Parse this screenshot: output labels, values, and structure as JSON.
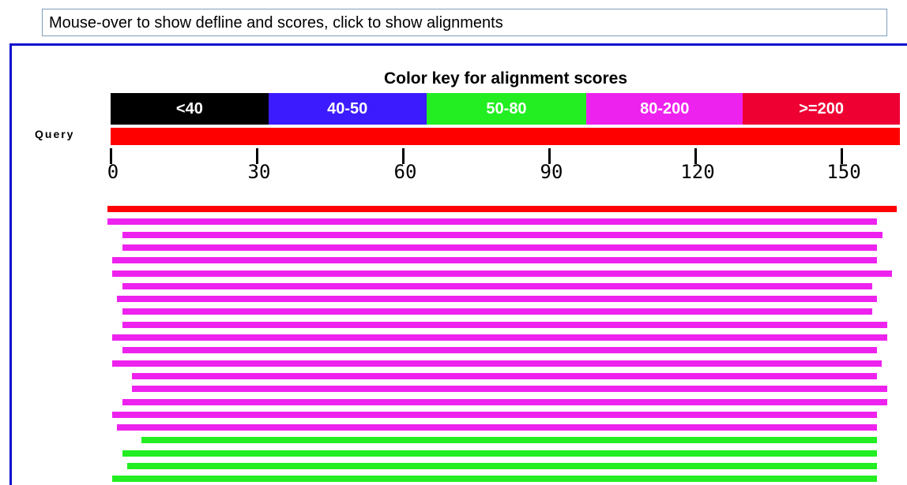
{
  "instruction": "Mouse-over to show defline and scores, click to show alignments",
  "color_key": {
    "title": "Color key for alignment scores",
    "ranges": [
      {
        "label": "<40",
        "color": "#000000",
        "fraction": 0.2
      },
      {
        "label": "40-50",
        "color": "#3c1cff",
        "fraction": 0.2
      },
      {
        "label": "50-80",
        "color": "#22ee22",
        "fraction": 0.203
      },
      {
        "label": "80-200",
        "color": "#ee22ee",
        "fraction": 0.198
      },
      {
        "label": ">=200",
        "color": "#ee0033",
        "fraction": 0.199
      }
    ]
  },
  "query": {
    "label": "Query",
    "color": "#ff0000",
    "length": 162
  },
  "ruler": {
    "ticks": [
      0,
      30,
      60,
      90,
      120,
      150
    ]
  },
  "hits": [
    {
      "start": 0,
      "end": 162,
      "color": "#ff0000"
    },
    {
      "start": 0,
      "end": 158,
      "color": "#ee22ee"
    },
    {
      "start": 3,
      "end": 159,
      "color": "#ee22ee"
    },
    {
      "start": 3,
      "end": 158,
      "color": "#ee22ee"
    },
    {
      "start": 1,
      "end": 158,
      "color": "#ee22ee"
    },
    {
      "start": 1,
      "end": 161,
      "color": "#ee22ee"
    },
    {
      "start": 3,
      "end": 157,
      "color": "#ee22ee"
    },
    {
      "start": 2,
      "end": 158,
      "color": "#ee22ee"
    },
    {
      "start": 3,
      "end": 157,
      "color": "#ee22ee"
    },
    {
      "start": 3,
      "end": 160,
      "color": "#ee22ee"
    },
    {
      "start": 1,
      "end": 160,
      "color": "#ee22ee"
    },
    {
      "start": 3,
      "end": 158,
      "color": "#ee22ee"
    },
    {
      "start": 1,
      "end": 159,
      "color": "#ee22ee"
    },
    {
      "start": 5,
      "end": 158,
      "color": "#ee22ee"
    },
    {
      "start": 5,
      "end": 160,
      "color": "#ee22ee"
    },
    {
      "start": 3,
      "end": 160,
      "color": "#ee22ee"
    },
    {
      "start": 1,
      "end": 158,
      "color": "#ee22ee"
    },
    {
      "start": 2,
      "end": 158,
      "color": "#ee22ee"
    },
    {
      "start": 7,
      "end": 158,
      "color": "#22ee22"
    },
    {
      "start": 3,
      "end": 158,
      "color": "#22ee22"
    },
    {
      "start": 4,
      "end": 158,
      "color": "#22ee22"
    },
    {
      "start": 1,
      "end": 158,
      "color": "#22ee22"
    }
  ]
}
